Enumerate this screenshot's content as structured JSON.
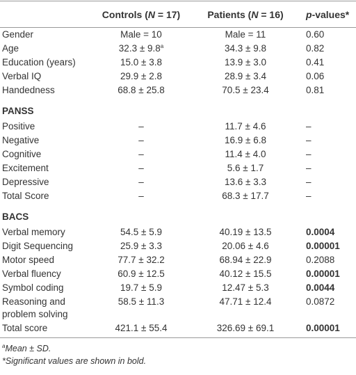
{
  "header": {
    "columns": [
      [
        "Controls (",
        "N",
        " = 17)"
      ],
      [
        "Patients (",
        "N",
        " = 16)"
      ],
      [
        "p",
        "-values*"
      ]
    ]
  },
  "sections": [
    {
      "rows": [
        {
          "label": "Gender",
          "cells": [
            "Male = 10",
            "Male = 11",
            "0.60"
          ]
        },
        {
          "label": "Age",
          "cells": [
            "32.3 ± 9.8",
            "34.3 ± 9.8",
            "0.82"
          ],
          "note": "a"
        },
        {
          "label": "Education (years)",
          "cells": [
            "15.0 ± 3.8",
            "13.9 ± 3.0",
            "0.41"
          ]
        },
        {
          "label": "Verbal IQ",
          "cells": [
            "29.9 ± 2.8",
            "28.9 ± 3.4",
            "0.06"
          ]
        },
        {
          "label": "Handedness",
          "cells": [
            "68.8 ± 25.8",
            "70.5 ± 23.4",
            "0.81"
          ]
        }
      ]
    },
    {
      "title": "PANSS",
      "rows": [
        {
          "label": "Positive",
          "cells": [
            "–",
            "11.7 ± 4.6",
            "–"
          ]
        },
        {
          "label": "Negative",
          "cells": [
            "–",
            "16.9 ± 6.8",
            "–"
          ]
        },
        {
          "label": "Cognitive",
          "cells": [
            "–",
            "11.4 ± 4.0",
            "–"
          ]
        },
        {
          "label": "Excitement",
          "cells": [
            "–",
            "5.6 ± 1.7",
            "–"
          ]
        },
        {
          "label": "Depressive",
          "cells": [
            "–",
            "13.6 ± 3.3",
            "–"
          ]
        },
        {
          "label": "Total Score",
          "cells": [
            "–",
            "68.3 ± 17.7",
            "–"
          ]
        }
      ]
    },
    {
      "title": "BACS",
      "rows": [
        {
          "label": "Verbal memory",
          "cells": [
            "54.5 ± 5.9",
            "40.19 ± 13.5",
            "0.0004"
          ],
          "bold_p": true
        },
        {
          "label": "Digit Sequencing",
          "cells": [
            "25.9 ± 3.3",
            "20.06 ± 4.6",
            "0.00001"
          ],
          "bold_p": true
        },
        {
          "label": "Motor speed",
          "cells": [
            "77.7 ± 32.2",
            "68.94 ± 22.9",
            "0.2088"
          ]
        },
        {
          "label": "Verbal fluency",
          "cells": [
            "60.9 ± 12.5",
            "40.12 ± 15.5",
            "0.00001"
          ],
          "bold_p": true
        },
        {
          "label": "Symbol coding",
          "cells": [
            "19.7 ± 5.9",
            "12.47 ± 5.3",
            "0.0044"
          ],
          "bold_p": true
        },
        {
          "label": "Reasoning and problem solving",
          "cells": [
            "58.5 ± 11.3",
            "47.71 ± 12.4",
            "0.0872"
          ]
        },
        {
          "label": "Total score",
          "cells": [
            "421.1 ± 55.4",
            "326.69 ± 69.1",
            "0.00001"
          ],
          "bold_p": true
        }
      ]
    }
  ],
  "footnotes": [
    {
      "mark": "a",
      "text": "Mean ± SD."
    },
    {
      "text": "*Significant values are shown in bold."
    }
  ]
}
